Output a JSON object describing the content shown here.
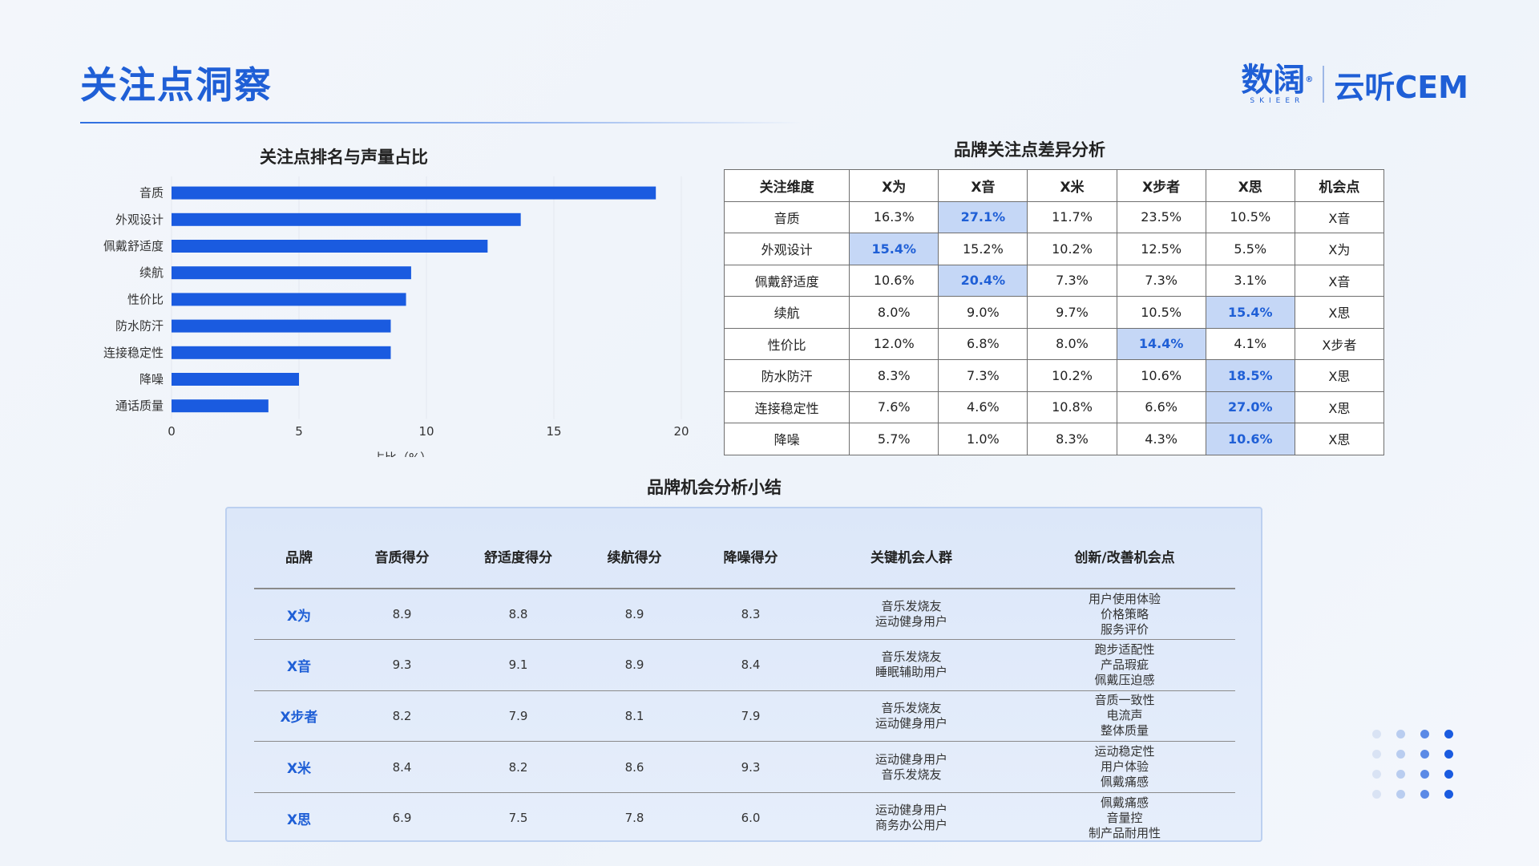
{
  "page": {
    "title": "关注点洞察",
    "logo_main": "数阔",
    "logo_reg": "®",
    "logo_en": "SKIEER",
    "logo_sub": "云听CEM"
  },
  "colors": {
    "accent": "#1f5fd6",
    "bar": "#1a5be0",
    "highlight": "#c5d7f6"
  },
  "chart_data": {
    "type": "bar",
    "orientation": "horizontal",
    "title": "关注点排名与声量占比",
    "xlabel": "占比（%）",
    "ylabel": "",
    "categories": [
      "音质",
      "外观设计",
      "佩戴舒适度",
      "续航",
      "性价比",
      "防水防汗",
      "连接稳定性",
      "降噪",
      "通话质量"
    ],
    "values": [
      19.0,
      13.7,
      12.4,
      9.4,
      9.2,
      8.6,
      8.6,
      5.0,
      3.8
    ],
    "xlim": [
      0,
      20
    ],
    "xticks": [
      0,
      5,
      10,
      15,
      20
    ],
    "grid": "vertical"
  },
  "brand_table": {
    "title": "品牌关注点差异分析",
    "headers": [
      "关注维度",
      "X为",
      "X音",
      "X米",
      "X步者",
      "X思",
      "机会点"
    ],
    "rows": [
      {
        "cells": [
          "音质",
          "16.3%",
          "27.1%",
          "11.7%",
          "23.5%",
          "10.5%",
          "X音"
        ],
        "highlight": 2
      },
      {
        "cells": [
          "外观设计",
          "15.4%",
          "15.2%",
          "10.2%",
          "12.5%",
          "5.5%",
          "X为"
        ],
        "highlight": 1
      },
      {
        "cells": [
          "佩戴舒适度",
          "10.6%",
          "20.4%",
          "7.3%",
          "7.3%",
          "3.1%",
          "X音"
        ],
        "highlight": 2
      },
      {
        "cells": [
          "续航",
          "8.0%",
          "9.0%",
          "9.7%",
          "10.5%",
          "15.4%",
          "X思"
        ],
        "highlight": 5
      },
      {
        "cells": [
          "性价比",
          "12.0%",
          "6.8%",
          "8.0%",
          "14.4%",
          "4.1%",
          "X步者"
        ],
        "highlight": 4
      },
      {
        "cells": [
          "防水防汗",
          "8.3%",
          "7.3%",
          "10.2%",
          "10.6%",
          "18.5%",
          "X思"
        ],
        "highlight": 5
      },
      {
        "cells": [
          "连接稳定性",
          "7.6%",
          "4.6%",
          "10.8%",
          "6.6%",
          "27.0%",
          "X思"
        ],
        "highlight": 5
      },
      {
        "cells": [
          "降噪",
          "5.7%",
          "1.0%",
          "8.3%",
          "4.3%",
          "10.6%",
          "X思"
        ],
        "highlight": 5
      }
    ]
  },
  "summary": {
    "title": "品牌机会分析小结",
    "headers": [
      "品牌",
      "音质得分",
      "舒适度得分",
      "续航得分",
      "降噪得分",
      "关键机会人群",
      "创新/改善机会点"
    ],
    "rows": [
      {
        "brand": "X为",
        "scores": [
          "8.9",
          "8.8",
          "8.9",
          "8.3"
        ],
        "groups": [
          "音乐发烧友",
          "运动健身用户"
        ],
        "points": [
          "用户使用体验",
          "价格策略",
          "服务评价"
        ]
      },
      {
        "brand": "X音",
        "scores": [
          "9.3",
          "9.1",
          "8.9",
          "8.4"
        ],
        "groups": [
          "音乐发烧友",
          "睡眠辅助用户"
        ],
        "points": [
          "跑步适配性",
          "产品瑕疵",
          "佩戴压迫感"
        ]
      },
      {
        "brand": "X步者",
        "scores": [
          "8.2",
          "7.9",
          "8.1",
          "7.9"
        ],
        "groups": [
          "音乐发烧友",
          "运动健身用户"
        ],
        "points": [
          "音质一致性",
          "电流声",
          "整体质量"
        ]
      },
      {
        "brand": "X米",
        "scores": [
          "8.4",
          "8.2",
          "8.6",
          "9.3"
        ],
        "groups": [
          "运动健身用户",
          "音乐发烧友"
        ],
        "points": [
          "运动稳定性",
          "用户体验",
          "佩戴痛感"
        ]
      },
      {
        "brand": "X思",
        "scores": [
          "6.9",
          "7.5",
          "7.8",
          "6.0"
        ],
        "groups": [
          "运动健身用户",
          "商务办公用户"
        ],
        "points": [
          "佩戴痛感",
          "音量控",
          "制产品耐用性"
        ]
      }
    ]
  }
}
